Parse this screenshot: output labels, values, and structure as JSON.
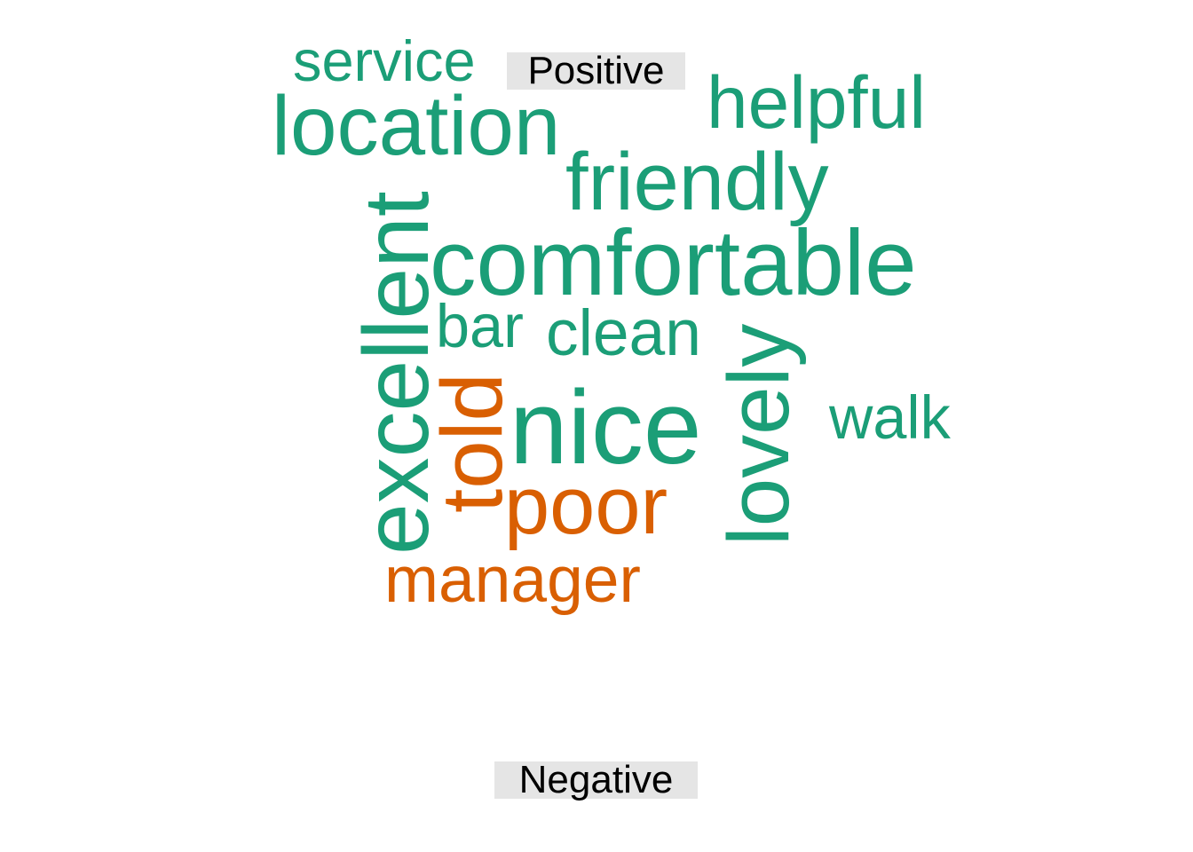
{
  "chart_data": {
    "type": "wordcloud",
    "groups": [
      {
        "name": "Positive",
        "color": "#1b9e77"
      },
      {
        "name": "Negative",
        "color": "#d95f02"
      }
    ],
    "words": [
      {
        "text": "nice",
        "group": "Positive",
        "weight": 100
      },
      {
        "text": "comfortable",
        "group": "Positive",
        "weight": 89
      },
      {
        "text": "excellent",
        "group": "Positive",
        "weight": 88
      },
      {
        "text": "lovely",
        "group": "Positive",
        "weight": 83
      },
      {
        "text": "location",
        "group": "Positive",
        "weight": 80
      },
      {
        "text": "friendly",
        "group": "Positive",
        "weight": 78
      },
      {
        "text": "helpful",
        "group": "Positive",
        "weight": 71
      },
      {
        "text": "clean",
        "group": "Positive",
        "weight": 62
      },
      {
        "text": "bar",
        "group": "Positive",
        "weight": 58
      },
      {
        "text": "walk",
        "group": "Positive",
        "weight": 58
      },
      {
        "text": "service",
        "group": "Positive",
        "weight": 55
      },
      {
        "text": "told",
        "group": "Negative",
        "weight": 83
      },
      {
        "text": "poor",
        "group": "Negative",
        "weight": 78
      },
      {
        "text": "manager",
        "group": "Negative",
        "weight": 62
      }
    ]
  }
}
